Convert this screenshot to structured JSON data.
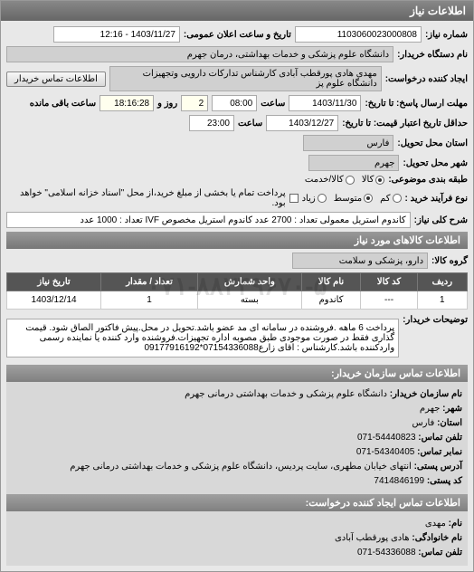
{
  "panel_title": "اطلاعات نیاز",
  "request_number_label": "شماره نیاز:",
  "request_number": "1103060023000808",
  "announce_label": "تاریخ و ساعت اعلان عمومی:",
  "announce_value": "1403/11/27 - 12:16",
  "buyer_label": "نام دستگاه خریدار:",
  "buyer_value": "دانشگاه علوم پزشکی و خدمات بهداشتی، درمان جهرم",
  "creator_label": "ایجاد کننده درخواست:",
  "creator_value": "مهدی هادی پورقطب آبادی کارشناس تدارکات دارویی وتجهیزات دانشگاه علوم پز",
  "contact_btn": "اطلاعات تماس خریدار",
  "deadline_label": "مهلت ارسال پاسخ: تا تاریخ:",
  "deadline_date": "1403/11/30",
  "time_label": "ساعت",
  "deadline_time": "08:00",
  "days_remain": "2",
  "days_label": "روز و",
  "hours_remain": "18:16:28",
  "hours_label": "ساعت باقی مانده",
  "validity_label": "حداقل تاریخ اعتبار قیمت: تا تاریخ:",
  "validity_date": "1403/12/27",
  "validity_time": "23:00",
  "delivery_state_label": "استان محل تحویل:",
  "delivery_state": "فارس",
  "delivery_city_label": "شهر محل تحویل:",
  "delivery_city": "جهرم",
  "budget_label": "طبقه بندی موضوعی:",
  "budget_options": {
    "kala": "کالا",
    "khadamat": "کالا/خدمت"
  },
  "buy_type_label": "نوع فرآیند خرید :",
  "buy_type_options": {
    "low": "کم",
    "mid": "متوسط",
    "high": "زیاد"
  },
  "payment_note": "پرداخت تمام یا بخشی از مبلغ خرید،از محل \"اسناد خزانه اسلامی\" خواهد بود.",
  "desc_label": "شرح کلی نیاز:",
  "desc_value": "کاندوم استریل معمولی تعداد : 2700 عدد کاندوم استریل مخصوص IVF تعداد : 1000 عدد",
  "goods_header": "اطلاعات کالاهای مورد نیاز",
  "group_label": "گروه کالا:",
  "group_value": "دارو، پزشکی و سلامت",
  "table": {
    "columns": [
      "ردیف",
      "کد کالا",
      "نام کالا",
      "واحد شمارش",
      "تعداد / مقدار",
      "تاریخ نیاز"
    ],
    "rows": [
      [
        "1",
        "---",
        "کاندوم",
        "بسته",
        "1",
        "1403/12/14"
      ]
    ]
  },
  "explain_label": "توضیحات خریدار:",
  "explain_value": "پرداخت 6 ماهه .فروشنده در سامانه ای مد عضو باشد.تحویل در محل.پیش فاکتور الصاق شود. قیمت گذاری فقط در صورت موجودی طبق مصوبه اداره تجهیزات.فروشنده وارد کننده یا نماینده رسمی واردکننده باشد.کارشناس : اقای زارع07154336088*09177916192",
  "contact1_header": "اطلاعات تماس سازمان خریدار:",
  "contact1": {
    "org_label": "نام سازمان خریدار:",
    "org": "دانشگاه علوم پزشکی و خدمات بهداشتی درمانی جهرم",
    "city_label": "شهر:",
    "city": "جهرم",
    "state_label": "استان:",
    "state": "فارس",
    "phone_label": "تلفن تماس:",
    "phone": "54440823-071",
    "fax_label": "نمابر تماس:",
    "fax": "54340405-071",
    "addr_label": "آدرس پستی:",
    "addr": "انتهای خیابان مطهری، سایت پردیس، دانشگاه علوم پزشکی و خدمات بهداشتی درمانی جهرم",
    "post_label": "کد پستی:",
    "post": "7414846199"
  },
  "contact2_header": "اطلاعات تماس ایجاد کننده درخواست:",
  "contact2": {
    "name_label": "نام:",
    "name": "مهدی",
    "family_label": "نام خانوادگی:",
    "family": "هادی پورقطب آبادی",
    "phone_label": "تلفن تماس:",
    "phone": "54336088-071"
  },
  "watermark": "۰۷۱-۸۸۳۴۹۶۷۰-۵"
}
